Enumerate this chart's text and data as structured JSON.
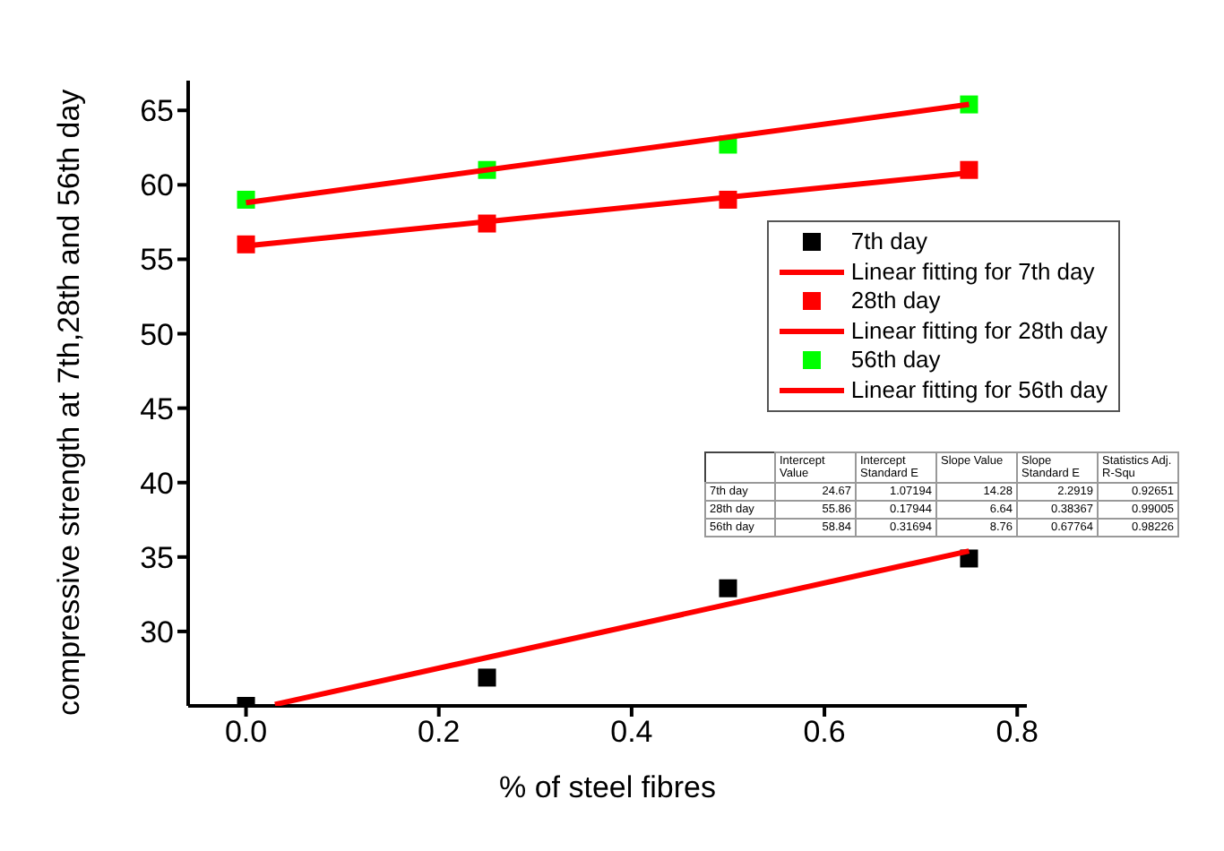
{
  "chart_data": {
    "type": "scatter",
    "xlabel": "% of steel fibres",
    "ylabel": "compressive strength at 7th,28th and 56th day",
    "xlim": [
      -0.06,
      0.81
    ],
    "ylim": [
      25,
      67
    ],
    "xticks": [
      {
        "value": 0,
        "label": "0.0"
      },
      {
        "value": 0.2,
        "label": "0.2"
      },
      {
        "value": 0.4,
        "label": "0.4"
      },
      {
        "value": 0.6,
        "label": "0.6"
      },
      {
        "value": 0.8,
        "label": "0.8"
      }
    ],
    "yticks": [
      30,
      35,
      40,
      45,
      50,
      55,
      60,
      65
    ],
    "grid": false,
    "legend": "top right",
    "series": [
      {
        "name": "7th day",
        "marker": "square",
        "color": "#000000",
        "x": [
          0,
          0.25,
          0.5,
          0.75
        ],
        "values": [
          25,
          26.9,
          32.9,
          34.9
        ]
      },
      {
        "name": "Linear fitting for 7th day",
        "type": "line",
        "marker": "none",
        "color": "#ff0000",
        "x": [
          0.03,
          0.75
        ],
        "values": [
          25.1,
          35.4
        ]
      },
      {
        "name": "28th day",
        "marker": "square",
        "color": "#ff0000",
        "x": [
          0,
          0.25,
          0.5,
          0.75
        ],
        "values": [
          56,
          57.4,
          59,
          61
        ]
      },
      {
        "name": "Linear fitting for 28th day",
        "type": "line",
        "marker": "none",
        "color": "#ff0000",
        "x": [
          0,
          0.75
        ],
        "values": [
          55.9,
          60.8
        ]
      },
      {
        "name": "56th day",
        "marker": "square",
        "color": "#00ff00",
        "x": [
          0,
          0.25,
          0.5,
          0.75
        ],
        "values": [
          59,
          61,
          62.7,
          65.4
        ]
      },
      {
        "name": "Linear fitting for 56th day",
        "type": "line",
        "marker": "none",
        "color": "#ff0000",
        "x": [
          0,
          0.75
        ],
        "values": [
          58.8,
          65.4
        ]
      }
    ],
    "annotations": [
      "Intercept Value",
      "Intercept Standard E",
      "Slope Value",
      "Slope Standard E",
      "Statistics Adj. R-Squ",
      "7th day",
      "24.67",
      "1.07194",
      "14.28",
      "2.2919",
      "0.92651",
      "28th day",
      "55.86",
      "0.17944",
      "6.64",
      "0.38367",
      "0.99005",
      "56th day",
      "58.84",
      "0.31694",
      "8.76",
      "0.67764",
      "0.98226"
    ]
  }
}
